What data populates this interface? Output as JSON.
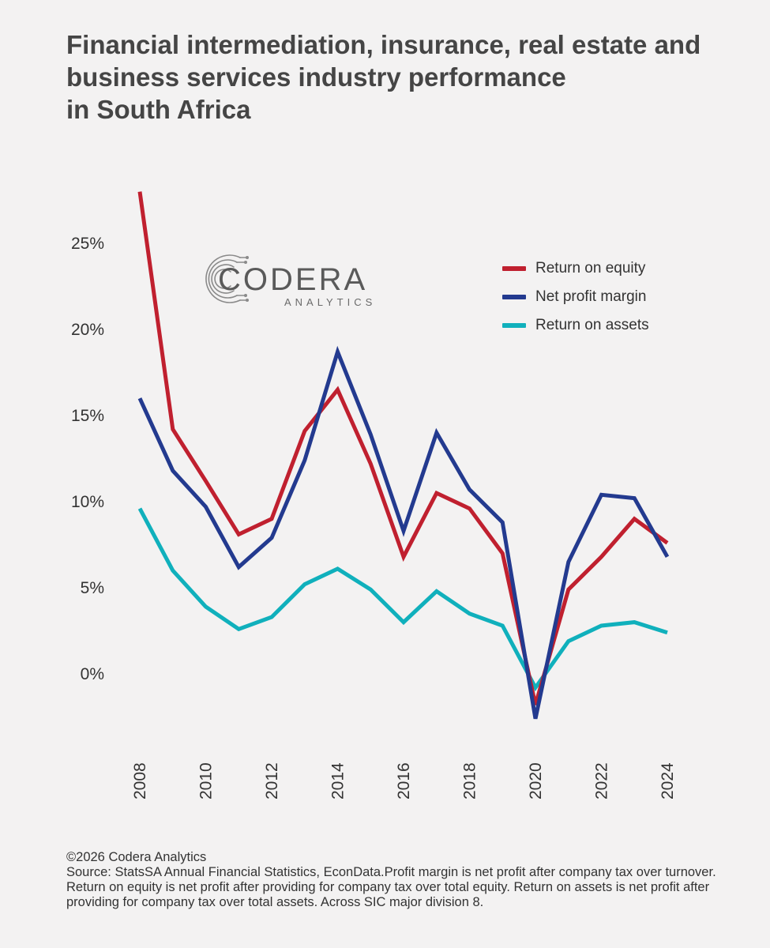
{
  "title_lines": [
    "Financial intermediation, insurance, real estate and",
    "business services industry performance",
    "in South Africa"
  ],
  "logo": {
    "word": "CODERA",
    "sub": "ANALYTICS",
    "icon": "circuit-c-icon"
  },
  "footer": {
    "copyright": "©2026 Codera Analytics",
    "source": "Source: StatsSA Annual Financial Statistics, EconData.Profit margin is net profit after company tax over turnover. Return on equity is net profit after providing for company tax over total equity. Return on assets is net profit after providing for company tax over total assets. Across SIC major division 8."
  },
  "chart_data": {
    "type": "line",
    "x": [
      2008,
      2009,
      2010,
      2011,
      2012,
      2013,
      2014,
      2015,
      2016,
      2017,
      2018,
      2019,
      2020,
      2021,
      2022,
      2023,
      2024
    ],
    "x_tick_labels": [
      "2008",
      "2010",
      "2012",
      "2014",
      "2016",
      "2018",
      "2020",
      "2022",
      "2024"
    ],
    "y_tick_values": [
      0,
      5,
      10,
      15,
      20,
      25
    ],
    "y_tick_labels": [
      "0%",
      "5%",
      "10%",
      "15%",
      "20%",
      "25%"
    ],
    "ylim": [
      -3,
      28
    ],
    "xlim": [
      2008,
      2024
    ],
    "grid": false,
    "legend_position": "top-right",
    "series": [
      {
        "name": "Return on equity",
        "color": "#c0202f",
        "values": [
          28.0,
          14.2,
          11.2,
          8.1,
          9.0,
          14.1,
          16.5,
          12.2,
          6.8,
          10.5,
          9.6,
          7.0,
          -1.8,
          4.9,
          6.8,
          9.0,
          7.6
        ]
      },
      {
        "name": "Net profit margin",
        "color": "#233a8f",
        "values": [
          16.0,
          11.8,
          9.7,
          6.2,
          7.9,
          12.4,
          18.7,
          13.9,
          8.3,
          14.0,
          10.7,
          8.8,
          -2.6,
          6.5,
          10.4,
          10.2,
          6.8
        ]
      },
      {
        "name": "Return on assets",
        "color": "#10b0bc",
        "values": [
          9.6,
          6.0,
          3.9,
          2.6,
          3.3,
          5.2,
          6.1,
          4.9,
          3.0,
          4.8,
          3.5,
          2.8,
          -0.8,
          1.9,
          2.8,
          3.0,
          2.4
        ]
      }
    ]
  }
}
